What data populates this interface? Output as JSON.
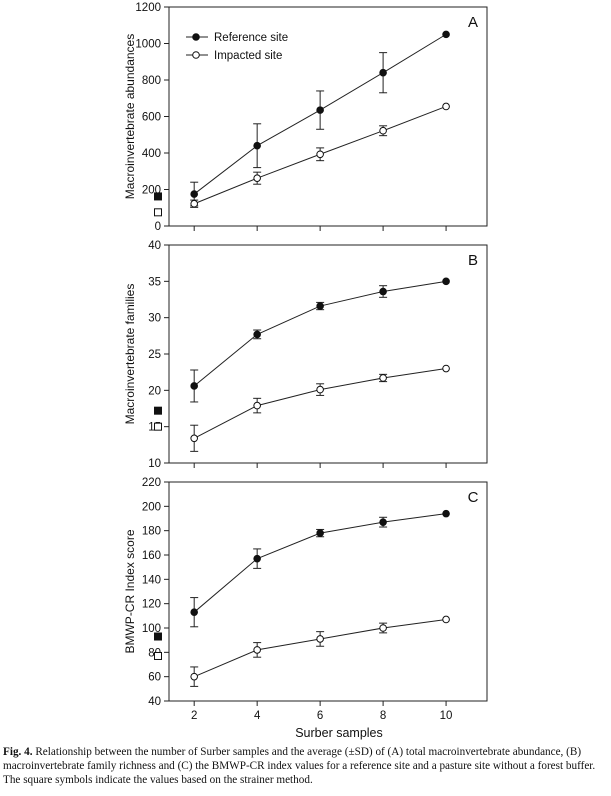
{
  "x_axis_label": "Surber samples",
  "caption": {
    "label": "Fig. 4.",
    "text": "Relationship between the number of Surber samples and the average (±SD) of (A) total macroinvertebrate abundance, (B) macroinvertebrate family richness and (C) the BMWP-CR index values for a reference site and a pasture site without a forest buffer. The square symbols indicate the values based on the strainer method."
  },
  "chart_data": [
    {
      "type": "line",
      "panel_label": "A",
      "ylabel": "Macroinvertebrate abundances",
      "xlim": [
        1.2,
        11.3
      ],
      "ylim": [
        0,
        1200
      ],
      "yticks": [
        0,
        200,
        400,
        600,
        800,
        1000,
        1200
      ],
      "xticks": [
        2,
        4,
        6,
        8,
        10
      ],
      "show_xtick_labels": false,
      "legend_position": "top-left",
      "x": [
        2,
        4,
        6,
        8,
        10
      ],
      "series": [
        {
          "name": "Reference site",
          "marker": "filled-circle",
          "values": [
            175,
            440,
            635,
            840,
            1050
          ],
          "sd": [
            65,
            120,
            105,
            110,
            0
          ],
          "strainer_value": 162
        },
        {
          "name": "Impacted site",
          "marker": "open-circle",
          "values": [
            122,
            262,
            393,
            522,
            655
          ],
          "sd": [
            20,
            33,
            35,
            27,
            0
          ],
          "strainer_value": 75
        }
      ]
    },
    {
      "type": "line",
      "panel_label": "B",
      "ylabel": "Macroinvertebrate families",
      "xlim": [
        1.2,
        11.3
      ],
      "ylim": [
        10,
        40
      ],
      "yticks": [
        10,
        15,
        20,
        25,
        30,
        35,
        40
      ],
      "xticks": [
        2,
        4,
        6,
        8,
        10
      ],
      "show_xtick_labels": false,
      "x": [
        2,
        4,
        6,
        8,
        10
      ],
      "series": [
        {
          "marker": "filled-circle",
          "values": [
            20.6,
            27.7,
            31.6,
            33.6,
            35.0
          ],
          "sd": [
            2.2,
            0.6,
            0.5,
            0.8,
            0
          ],
          "strainer_value": 17.2
        },
        {
          "marker": "open-circle",
          "values": [
            13.4,
            17.9,
            20.1,
            21.7,
            23.0
          ],
          "sd": [
            1.8,
            1.0,
            0.8,
            0.5,
            0
          ],
          "strainer_value": 15.0
        }
      ]
    },
    {
      "type": "line",
      "panel_label": "C",
      "ylabel": "BMWP-CR Index score",
      "xlim": [
        1.2,
        11.3
      ],
      "ylim": [
        40,
        220
      ],
      "yticks": [
        40,
        60,
        80,
        100,
        120,
        140,
        160,
        180,
        200,
        220
      ],
      "xticks": [
        2,
        4,
        6,
        8,
        10
      ],
      "show_xtick_labels": true,
      "x": [
        2,
        4,
        6,
        8,
        10
      ],
      "series": [
        {
          "marker": "filled-circle",
          "values": [
            113,
            157,
            178,
            187,
            194
          ],
          "sd": [
            12,
            8,
            3,
            4,
            0
          ],
          "strainer_value": 93
        },
        {
          "marker": "open-circle",
          "values": [
            60,
            82,
            91,
            100,
            107
          ],
          "sd": [
            8,
            6,
            6,
            4,
            0
          ],
          "strainer_value": 77
        }
      ]
    }
  ]
}
